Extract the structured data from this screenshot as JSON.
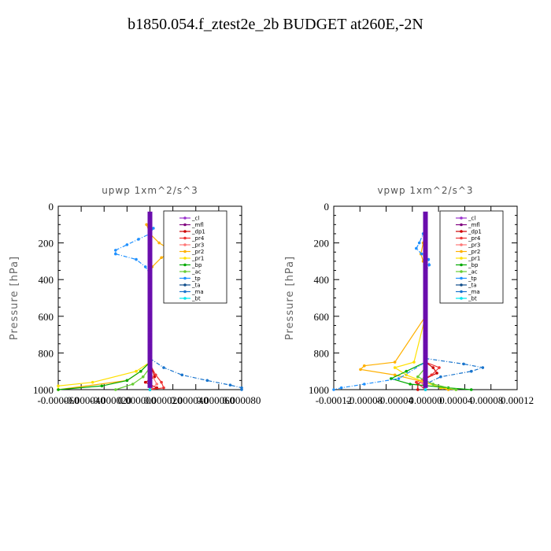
{
  "page": {
    "title": "b1850.054.f_ztest2e_2b  BUDGET at260E,-2N"
  },
  "chart_data": [
    {
      "type": "line",
      "title": "upwp   1xm^2/s^3",
      "ylabel": "Pressure [hPa]",
      "xlabel": "",
      "xlim": [
        -8e-05,
        8e-05
      ],
      "ylim": [
        1000,
        0
      ],
      "x_ticks": [
        "-0.000060",
        "-0.000040",
        "-0.000020",
        "0.000000",
        "0.000020",
        "0.000040",
        "0.000060",
        "0.000080"
      ],
      "y_ticks": [
        "0",
        "200",
        "400",
        "600",
        "800",
        "1000"
      ],
      "legend_position": "top-right",
      "series": [
        {
          "name": "_cl",
          "color": "#9a32cd",
          "y": [
            100,
            200,
            300,
            500,
            700,
            850,
            950,
            1000
          ],
          "x": [
            0,
            0,
            0,
            0,
            0,
            0,
            0,
            0
          ]
        },
        {
          "name": "_mfl",
          "color": "#800080",
          "y": [
            100,
            200,
            300,
            500,
            700,
            850,
            950,
            1000
          ],
          "x": [
            0,
            0,
            0,
            0,
            0,
            0,
            0,
            0
          ]
        },
        {
          "name": "_dp1",
          "color": "#cc0000",
          "y": [
            100,
            200,
            300,
            600,
            850,
            930,
            960,
            990,
            1000
          ],
          "x": [
            0,
            0,
            0,
            0,
            0,
            4e-06,
            -4e-06,
            6e-06,
            0
          ]
        },
        {
          "name": "_pr4",
          "color": "#ee3333",
          "y": [
            100,
            200,
            300,
            600,
            860,
            920,
            960,
            990,
            1000
          ],
          "x": [
            0,
            0,
            0,
            0,
            0,
            5e-06,
            1e-05,
            1.2e-05,
            0
          ]
        },
        {
          "name": "_pr3",
          "color": "#ff7777",
          "y": [
            100,
            200,
            300,
            600,
            900,
            970,
            1000
          ],
          "x": [
            0,
            0,
            0,
            0,
            0,
            6e-06,
            0
          ]
        },
        {
          "name": "_pr2",
          "color": "#ffb000",
          "y": [
            100,
            150,
            200,
            230,
            250,
            280,
            330,
            380,
            500,
            850,
            900,
            950,
            1000
          ],
          "x": [
            -3e-06,
            0,
            8e-06,
            1.6e-05,
            2e-05,
            1e-05,
            2e-06,
            0,
            0,
            0,
            -8e-06,
            -2e-05,
            -8e-05
          ]
        },
        {
          "name": "_pr1",
          "color": "#ffe000",
          "y": [
            90,
            150,
            250,
            350,
            500,
            850,
            900,
            960,
            980,
            1000
          ],
          "x": [
            0,
            0,
            0,
            0,
            0,
            0,
            -1.2e-05,
            -5e-05,
            -8e-05,
            -8e-05
          ]
        },
        {
          "name": "_bp",
          "color": "#00aa00",
          "y": [
            100,
            300,
            600,
            850,
            900,
            950,
            980,
            1000
          ],
          "x": [
            0,
            0,
            0,
            0,
            -8e-06,
            -2e-05,
            -4.2e-05,
            -8e-05
          ]
        },
        {
          "name": "_ac",
          "color": "#66cc33",
          "y": [
            100,
            300,
            600,
            880,
            930,
            970,
            1000
          ],
          "x": [
            0,
            0,
            0,
            0,
            -6e-06,
            -1.5e-05,
            -3e-05
          ]
        },
        {
          "name": "_tp",
          "color": "#1e90ff",
          "y": [
            90,
            120,
            150,
            180,
            210,
            240,
            260,
            290,
            330,
            370,
            500,
            850,
            1000
          ],
          "x": [
            0,
            3e-06,
            0,
            -1e-05,
            -2e-05,
            -3e-05,
            -3e-05,
            -1.2e-05,
            -4e-06,
            0,
            0,
            0,
            0
          ]
        },
        {
          "name": "_ta",
          "color": "#104e8b",
          "y": [
            100,
            500,
            850,
            1000
          ],
          "x": [
            0,
            0,
            0,
            0
          ]
        },
        {
          "name": "_ma",
          "color": "#1874cd",
          "y": [
            100,
            300,
            600,
            830,
            880,
            920,
            950,
            975,
            990,
            1000
          ],
          "x": [
            0,
            0,
            0,
            0,
            1.2e-05,
            2.8e-05,
            5e-05,
            7e-05,
            8e-05,
            8e-05
          ]
        },
        {
          "name": "_bt",
          "color": "#00e5ee",
          "y": [
            100,
            500,
            850,
            1000
          ],
          "x": [
            0,
            0,
            0,
            0
          ]
        }
      ]
    },
    {
      "type": "line",
      "title": "vpwp   1xm^2/s^3",
      "ylabel": "Pressure [hPa]",
      "xlabel": "",
      "xlim": [
        -0.00012,
        0.00012
      ],
      "ylim": [
        1000,
        0
      ],
      "x_ticks": [
        "-0.00012",
        "-0.00008",
        "-0.00004",
        "0.00000",
        "0.00004",
        "0.00008",
        "0.00012"
      ],
      "y_ticks": [
        "0",
        "200",
        "400",
        "600",
        "800",
        "1000"
      ],
      "legend_position": "top-right",
      "series": [
        {
          "name": "_cl",
          "color": "#9a32cd",
          "y": [
            100,
            300,
            500,
            700,
            850,
            950,
            1000
          ],
          "x": [
            0,
            0,
            0,
            0,
            0,
            0,
            0
          ]
        },
        {
          "name": "_mfl",
          "color": "#800080",
          "y": [
            100,
            300,
            500,
            700,
            850,
            950,
            1000
          ],
          "x": [
            0,
            0,
            0,
            0,
            0,
            0,
            0
          ]
        },
        {
          "name": "_dp1",
          "color": "#cc0000",
          "y": [
            100,
            300,
            600,
            850,
            880,
            910,
            940,
            970,
            1000
          ],
          "x": [
            0,
            0,
            0,
            0,
            1e-05,
            1.5e-05,
            0,
            -1e-05,
            -1e-05
          ]
        },
        {
          "name": "_pr4",
          "color": "#ee3333",
          "y": [
            100,
            300,
            600,
            850,
            880,
            920,
            960,
            1000
          ],
          "x": [
            0,
            0,
            0,
            0,
            1.8e-05,
            8e-06,
            -1.2e-05,
            0
          ]
        },
        {
          "name": "_pr3",
          "color": "#ff7777",
          "y": [
            100,
            300,
            600,
            900,
            960,
            1000
          ],
          "x": [
            0,
            0,
            0,
            0,
            -5e-06,
            0
          ]
        },
        {
          "name": "_pr2",
          "color": "#ffb000",
          "y": [
            100,
            200,
            260,
            300,
            350,
            600,
            850,
            870,
            890,
            920,
            960,
            990,
            1000
          ],
          "x": [
            0,
            -3e-06,
            -6e-06,
            -3e-06,
            0,
            0,
            -4e-05,
            -8e-05,
            -8.5e-05,
            -4e-05,
            0,
            2e-05,
            3e-05
          ]
        },
        {
          "name": "_pr1",
          "color": "#ffe000",
          "y": [
            100,
            200,
            300,
            600,
            850,
            880,
            920,
            960,
            990,
            1000
          ],
          "x": [
            0,
            0,
            0,
            0,
            -1.5e-05,
            -4e-05,
            -2.5e-05,
            0,
            2e-05,
            4e-05
          ]
        },
        {
          "name": "_bp",
          "color": "#00aa00",
          "y": [
            100,
            300,
            600,
            850,
            900,
            940,
            970,
            990,
            1000
          ],
          "x": [
            0,
            0,
            0,
            0,
            -2.5e-05,
            -4.5e-05,
            -2e-05,
            3e-05,
            6e-05
          ]
        },
        {
          "name": "_ac",
          "color": "#66cc33",
          "y": [
            100,
            300,
            600,
            880,
            930,
            970,
            1000
          ],
          "x": [
            0,
            0,
            0,
            0,
            -1e-05,
            1e-05,
            4e-05
          ]
        },
        {
          "name": "_tp",
          "color": "#1e90ff",
          "y": [
            90,
            150,
            200,
            230,
            260,
            290,
            320,
            360,
            500,
            850,
            940,
            970,
            990,
            1000
          ],
          "x": [
            0,
            -3e-06,
            -8e-06,
            -1.2e-05,
            -5e-06,
            4e-06,
            5e-06,
            0,
            0,
            0,
            -3.5e-05,
            -8e-05,
            -0.00011,
            -0.00012
          ]
        },
        {
          "name": "_ta",
          "color": "#104e8b",
          "y": [
            100,
            500,
            850,
            1000
          ],
          "x": [
            0,
            0,
            0,
            0
          ]
        },
        {
          "name": "_ma",
          "color": "#1874cd",
          "y": [
            100,
            300,
            600,
            830,
            860,
            880,
            900,
            930,
            970,
            1000
          ],
          "x": [
            0,
            0,
            0,
            0,
            5e-05,
            7.5e-05,
            6e-05,
            2e-05,
            0,
            0
          ]
        },
        {
          "name": "_bt",
          "color": "#00e5ee",
          "y": [
            100,
            500,
            850,
            1000
          ],
          "x": [
            0,
            0,
            0,
            0
          ]
        }
      ]
    }
  ]
}
